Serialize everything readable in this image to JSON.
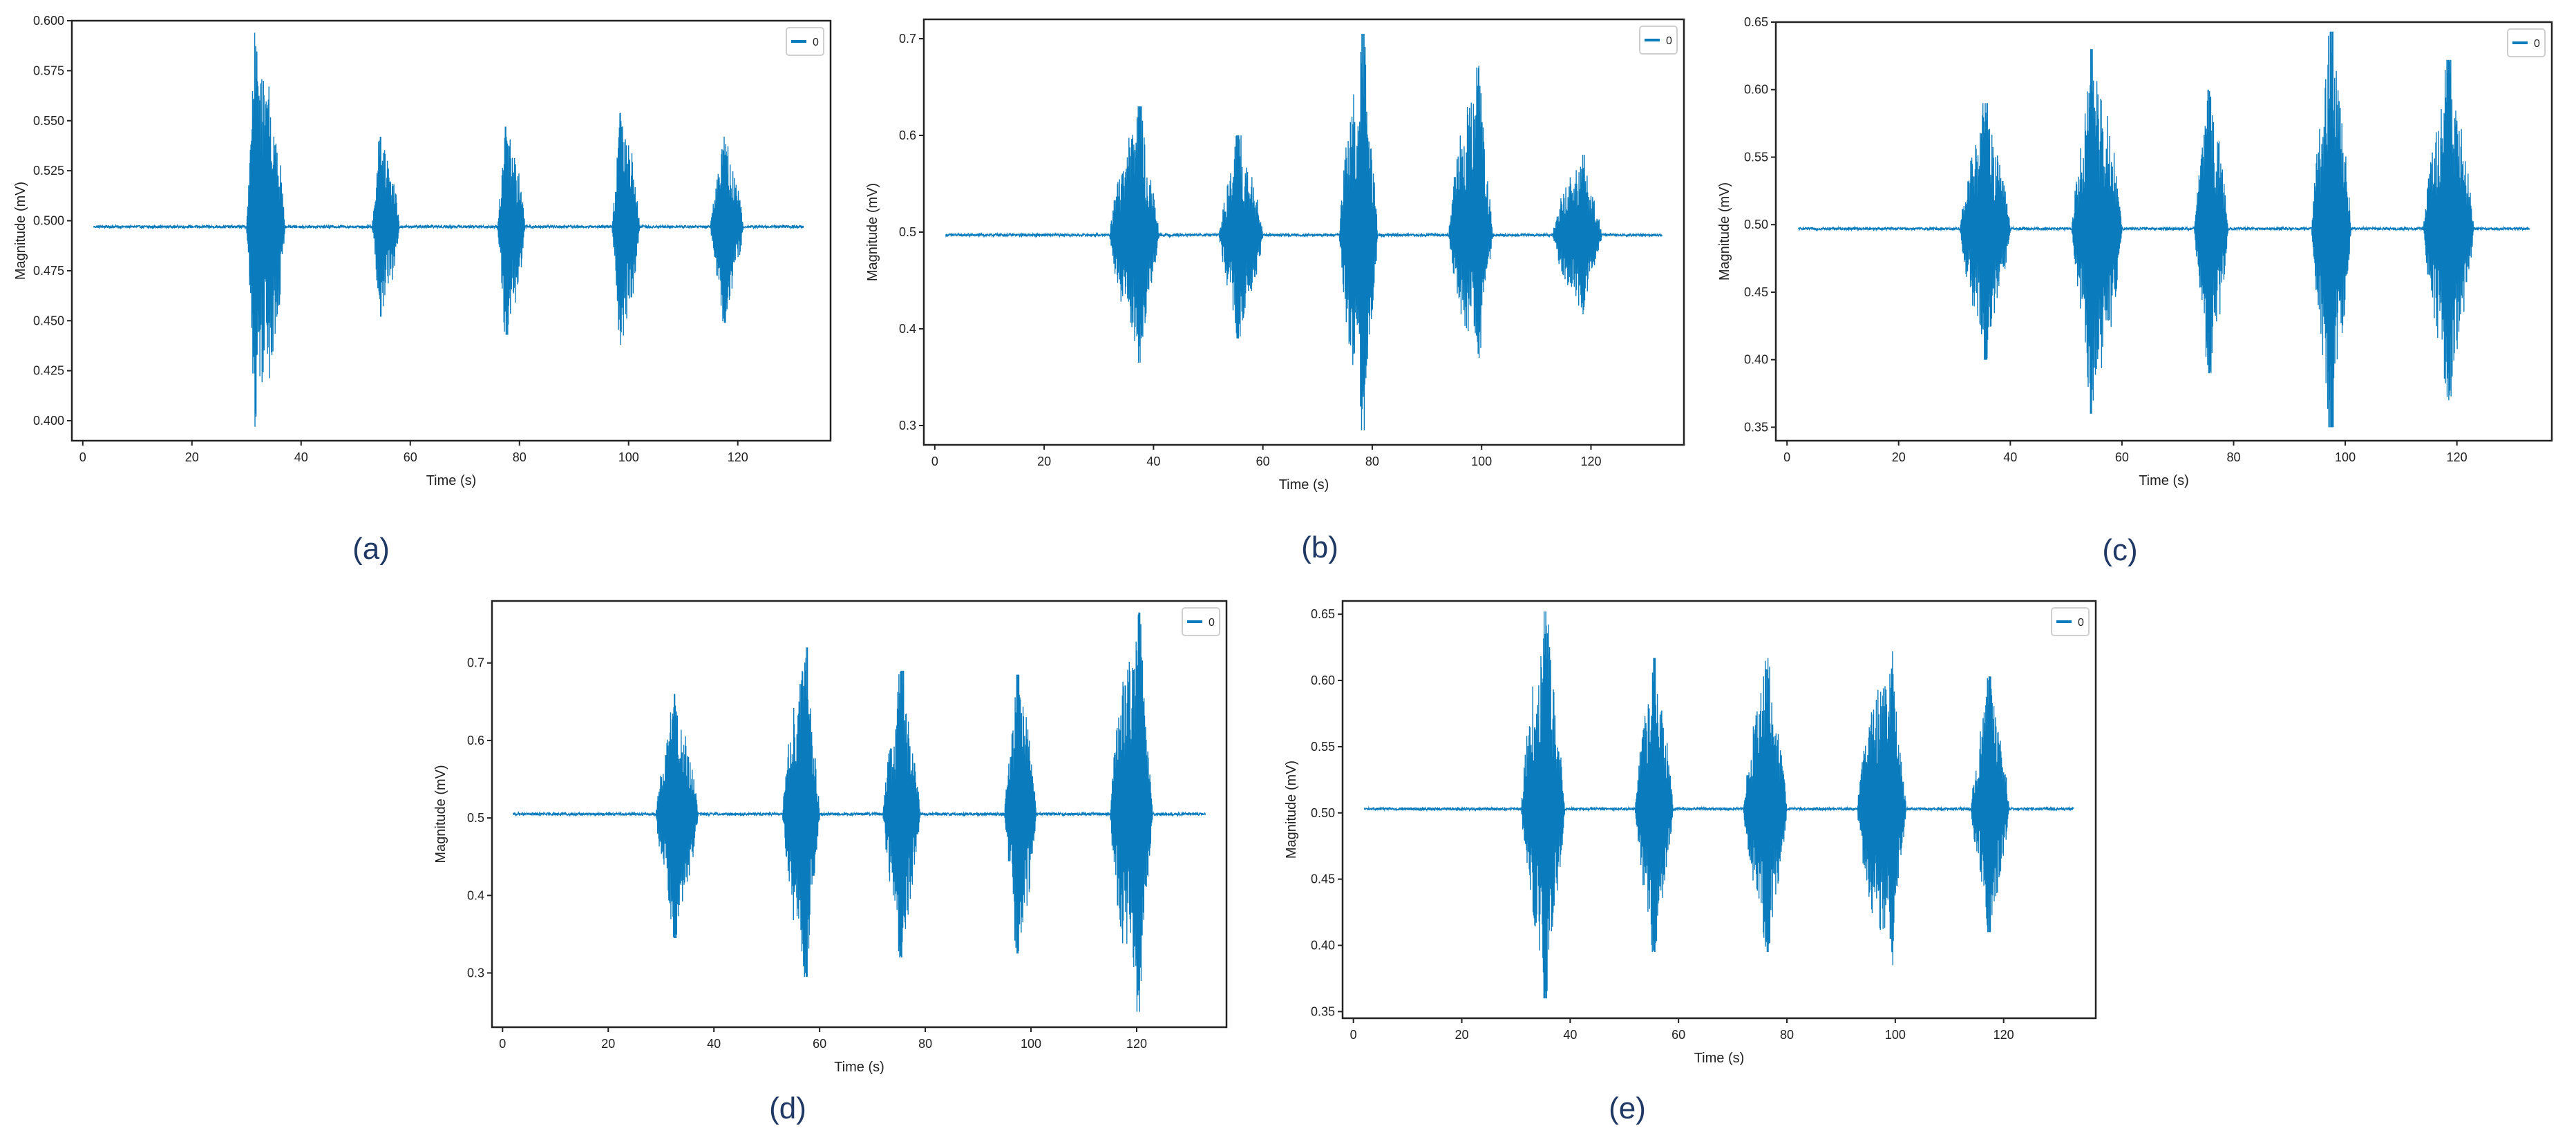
{
  "chart_data": [
    {
      "type": "line",
      "panel_label": "(a)",
      "xlabel": "Time (s)",
      "ylabel": "Magnitude (mV)",
      "legend": [
        "0"
      ],
      "legend_position": "top-right",
      "xlim": [
        -2,
        137
      ],
      "ylim": [
        0.39,
        0.6
      ],
      "xticks": [
        0,
        20,
        40,
        60,
        80,
        100,
        120
      ],
      "yticks": [
        0.4,
        0.425,
        0.45,
        0.475,
        0.5,
        0.525,
        0.55,
        0.575,
        0.6
      ],
      "ytick_labels": [
        "0.400",
        "0.425",
        "0.450",
        "0.475",
        "0.500",
        "0.525",
        "0.550",
        "0.575",
        "0.600"
      ],
      "baseline": 0.497,
      "x_start": 2,
      "x_end": 132,
      "bursts": [
        {
          "start": 30,
          "end": 37,
          "peak_time": 31.5,
          "max": 0.594,
          "min": 0.397
        },
        {
          "start": 53,
          "end": 58,
          "peak_time": 54.5,
          "max": 0.542,
          "min": 0.452
        },
        {
          "start": 76,
          "end": 81,
          "peak_time": 77.5,
          "max": 0.547,
          "min": 0.443
        },
        {
          "start": 97,
          "end": 102,
          "peak_time": 98.5,
          "max": 0.554,
          "min": 0.438
        },
        {
          "start": 115,
          "end": 121,
          "peak_time": 117.5,
          "max": 0.542,
          "min": 0.449
        }
      ],
      "grid": false
    },
    {
      "type": "line",
      "panel_label": "(b)",
      "xlabel": "Time (s)",
      "ylabel": "Magnitude (mV)",
      "legend": [
        "0"
      ],
      "legend_position": "top-right",
      "xlim": [
        -2,
        137
      ],
      "ylim": [
        0.28,
        0.72
      ],
      "xticks": [
        0,
        20,
        40,
        60,
        80,
        100,
        120
      ],
      "yticks": [
        0.3,
        0.4,
        0.5,
        0.6,
        0.7
      ],
      "ytick_labels": [
        "0.3",
        "0.4",
        "0.5",
        "0.6",
        "0.7"
      ],
      "baseline": 0.497,
      "x_start": 2,
      "x_end": 133,
      "bursts": [
        {
          "start": 32,
          "end": 41,
          "peak_time": 37.5,
          "max": 0.63,
          "min": 0.365
        },
        {
          "start": 52,
          "end": 60,
          "peak_time": 55.5,
          "max": 0.6,
          "min": 0.39
        },
        {
          "start": 74,
          "end": 81,
          "peak_time": 78.5,
          "max": 0.705,
          "min": 0.295
        },
        {
          "start": 94,
          "end": 102,
          "peak_time": 99.5,
          "max": 0.672,
          "min": 0.37
        },
        {
          "start": 113,
          "end": 122,
          "peak_time": 118.5,
          "max": 0.58,
          "min": 0.415
        }
      ],
      "grid": false
    },
    {
      "type": "line",
      "panel_label": "(c)",
      "xlabel": "Time (s)",
      "ylabel": "Magnitude (mV)",
      "legend": [
        "0"
      ],
      "legend_position": "top-right",
      "xlim": [
        -2,
        137
      ],
      "ylim": [
        0.34,
        0.65
      ],
      "xticks": [
        0,
        20,
        40,
        60,
        80,
        100,
        120
      ],
      "yticks": [
        0.35,
        0.4,
        0.45,
        0.5,
        0.55,
        0.6,
        0.65
      ],
      "ytick_labels": [
        "0.35",
        "0.40",
        "0.45",
        "0.50",
        "0.55",
        "0.60",
        "0.65"
      ],
      "baseline": 0.497,
      "x_start": 2,
      "x_end": 133,
      "bursts": [
        {
          "start": 31,
          "end": 40,
          "peak_time": 35.5,
          "max": 0.59,
          "min": 0.4
        },
        {
          "start": 51,
          "end": 60,
          "peak_time": 54.5,
          "max": 0.63,
          "min": 0.36
        },
        {
          "start": 73,
          "end": 79,
          "peak_time": 75.5,
          "max": 0.6,
          "min": 0.39
        },
        {
          "start": 94,
          "end": 101,
          "peak_time": 97.5,
          "max": 0.643,
          "min": 0.35
        },
        {
          "start": 114,
          "end": 123,
          "peak_time": 118.5,
          "max": 0.622,
          "min": 0.37
        }
      ],
      "grid": false
    },
    {
      "type": "line",
      "panel_label": "(d)",
      "xlabel": "Time (s)",
      "ylabel": "Magnitude (mV)",
      "legend": [
        "0"
      ],
      "legend_position": "top-right",
      "xlim": [
        -2,
        137
      ],
      "ylim": [
        0.23,
        0.78
      ],
      "xticks": [
        0,
        20,
        40,
        60,
        80,
        100,
        120
      ],
      "yticks": [
        0.3,
        0.4,
        0.5,
        0.6,
        0.7
      ],
      "ytick_labels": [
        "0.3",
        "0.4",
        "0.5",
        "0.6",
        "0.7"
      ],
      "baseline": 0.505,
      "x_start": 2,
      "x_end": 133,
      "bursts": [
        {
          "start": 29,
          "end": 37,
          "peak_time": 32.5,
          "max": 0.66,
          "min": 0.345
        },
        {
          "start": 53,
          "end": 60,
          "peak_time": 57.5,
          "max": 0.72,
          "min": 0.295
        },
        {
          "start": 72,
          "end": 79,
          "peak_time": 75.5,
          "max": 0.69,
          "min": 0.32
        },
        {
          "start": 95,
          "end": 101,
          "peak_time": 97.5,
          "max": 0.685,
          "min": 0.325
        },
        {
          "start": 115,
          "end": 123,
          "peak_time": 120.5,
          "max": 0.765,
          "min": 0.25
        }
      ],
      "grid": false
    },
    {
      "type": "line",
      "panel_label": "(e)",
      "xlabel": "Time (s)",
      "ylabel": "Magnitude (mV)",
      "legend": [
        "0"
      ],
      "legend_position": "top-right",
      "xlim": [
        -2,
        137
      ],
      "ylim": [
        0.345,
        0.66
      ],
      "xticks": [
        0,
        20,
        40,
        60,
        80,
        100,
        120
      ],
      "yticks": [
        0.35,
        0.4,
        0.45,
        0.5,
        0.55,
        0.6,
        0.65
      ],
      "ytick_labels": [
        "0.35",
        "0.40",
        "0.45",
        "0.50",
        "0.55",
        "0.60",
        "0.65"
      ],
      "baseline": 0.503,
      "x_start": 2,
      "x_end": 133,
      "bursts": [
        {
          "start": 31,
          "end": 39,
          "peak_time": 35.5,
          "max": 0.652,
          "min": 0.36
        },
        {
          "start": 52,
          "end": 59,
          "peak_time": 55.5,
          "max": 0.617,
          "min": 0.395
        },
        {
          "start": 72,
          "end": 80,
          "peak_time": 76.5,
          "max": 0.617,
          "min": 0.395
        },
        {
          "start": 93,
          "end": 102,
          "peak_time": 99.5,
          "max": 0.622,
          "min": 0.385
        },
        {
          "start": 114,
          "end": 121,
          "peak_time": 117.5,
          "max": 0.603,
          "min": 0.41
        }
      ],
      "grid": false
    }
  ],
  "colors": {
    "signal": "#0a7cbd",
    "caption": "#1f3864",
    "axis": "#222222"
  }
}
